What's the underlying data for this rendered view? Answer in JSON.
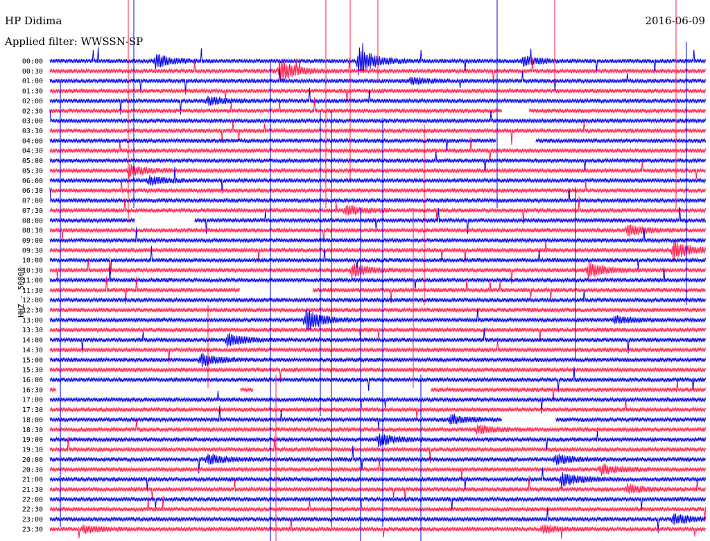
{
  "header": {
    "station": "HP Didima",
    "date": "2016-06-09",
    "filter": "Applied filter: WWSSN-SP"
  },
  "chart_data": {
    "type": "helicorder",
    "title": "HP Didima",
    "date": "2016-06-09",
    "ylabel": "HHZ - 50000",
    "rows": [
      "00:00",
      "00:30",
      "01:00",
      "01:30",
      "02:00",
      "02:30",
      "03:00",
      "03:30",
      "04:00",
      "04:30",
      "05:00",
      "05:30",
      "06:00",
      "06:30",
      "07:00",
      "07:30",
      "08:00",
      "08:30",
      "09:00",
      "09:30",
      "10:00",
      "10:30",
      "11:00",
      "11:30",
      "12:00",
      "12:30",
      "13:00",
      "13:30",
      "14:00",
      "14:30",
      "15:00",
      "15:30",
      "16:00",
      "16:30",
      "17:00",
      "17:30",
      "18:00",
      "18:30",
      "19:00",
      "19:30",
      "20:00",
      "20:30",
      "21:00",
      "21:30",
      "22:00",
      "22:30",
      "23:00",
      "23:30"
    ],
    "colors": [
      "#0000e6",
      "#ff1a4a"
    ],
    "events": [
      {
        "row": 0,
        "x": 0.16,
        "amp": 1.6
      },
      {
        "row": 0,
        "x": 0.47,
        "amp": 3.5
      },
      {
        "row": 0,
        "x": 0.72,
        "amp": 1.2
      },
      {
        "row": 1,
        "x": 0.35,
        "amp": 2.6
      },
      {
        "row": 2,
        "x": 0.55,
        "amp": 0.8
      },
      {
        "row": 4,
        "x": 0.24,
        "amp": 1.0
      },
      {
        "row": 11,
        "x": 0.12,
        "amp": 1.4
      },
      {
        "row": 12,
        "x": 0.15,
        "amp": 1.0
      },
      {
        "row": 15,
        "x": 0.45,
        "amp": 1.2
      },
      {
        "row": 17,
        "x": 0.88,
        "amp": 1.3
      },
      {
        "row": 19,
        "x": 0.95,
        "amp": 2.4
      },
      {
        "row": 21,
        "x": 0.46,
        "amp": 1.6
      },
      {
        "row": 21,
        "x": 0.82,
        "amp": 2.0
      },
      {
        "row": 26,
        "x": 0.39,
        "amp": 2.6
      },
      {
        "row": 26,
        "x": 0.86,
        "amp": 0.9
      },
      {
        "row": 28,
        "x": 0.27,
        "amp": 1.6
      },
      {
        "row": 30,
        "x": 0.23,
        "amp": 1.6
      },
      {
        "row": 36,
        "x": 0.61,
        "amp": 1.2
      },
      {
        "row": 37,
        "x": 0.65,
        "amp": 1.0
      },
      {
        "row": 38,
        "x": 0.5,
        "amp": 1.5
      },
      {
        "row": 40,
        "x": 0.24,
        "amp": 1.2
      },
      {
        "row": 40,
        "x": 0.77,
        "amp": 1.3
      },
      {
        "row": 41,
        "x": 0.84,
        "amp": 1.2
      },
      {
        "row": 42,
        "x": 0.78,
        "amp": 1.7
      },
      {
        "row": 43,
        "x": 0.88,
        "amp": 1.0
      },
      {
        "row": 46,
        "x": 0.95,
        "amp": 1.2
      },
      {
        "row": 47,
        "x": 0.05,
        "amp": 0.9
      },
      {
        "row": 47,
        "x": 0.75,
        "amp": 0.9
      }
    ],
    "gaps": [
      {
        "row": 5,
        "from": 0.69,
        "to": 0.73
      },
      {
        "row": 8,
        "from": 0.68,
        "to": 0.74
      },
      {
        "row": 16,
        "from": 0.13,
        "to": 0.22
      },
      {
        "row": 23,
        "from": 0.29,
        "to": 0.4
      },
      {
        "row": 33,
        "from": 0.01,
        "to": 0.29
      },
      {
        "row": 33,
        "from": 0.31,
        "to": 0.58
      },
      {
        "row": 36,
        "from": 0.69,
        "to": 0.77
      }
    ]
  }
}
